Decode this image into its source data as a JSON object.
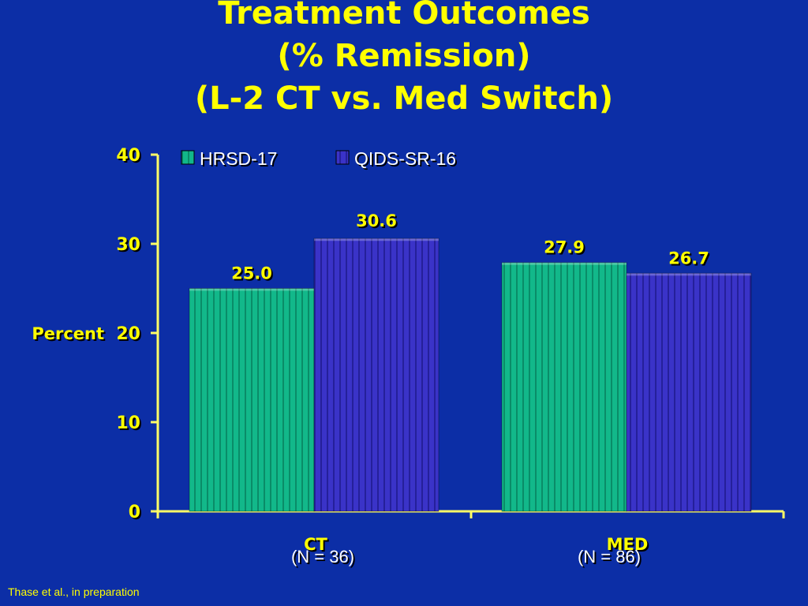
{
  "title_lines": [
    "Treatment Outcomes",
    "(% Remission)",
    "(L-2 CT vs. Med Switch)"
  ],
  "citation": "Thase et al., in preparation",
  "colors": {
    "background": "#0c2ea6",
    "title": "#ffff00",
    "axis": "#ffff66",
    "label_text": "#ffff00",
    "hrsd": "#12b88a",
    "qids": "#3a33c8"
  },
  "chart_data": {
    "type": "bar",
    "categories": [
      "CT",
      "MED"
    ],
    "category_sublabels": [
      "(N = 36)",
      "(N = 86)"
    ],
    "series": [
      {
        "name": "HRSD-17",
        "values": [
          25.0,
          27.9
        ],
        "labels": [
          "25.0",
          "27.9"
        ],
        "color": "#12b88a"
      },
      {
        "name": "QIDS-SR-16",
        "values": [
          30.6,
          26.7
        ],
        "labels": [
          "30.6",
          "26.7"
        ],
        "color": "#3a33c8"
      }
    ],
    "ylabel": "Percent",
    "ylim": [
      0,
      40
    ],
    "yticks": [
      0,
      10,
      20,
      30,
      40
    ],
    "legend": "top-left",
    "grid": false
  }
}
